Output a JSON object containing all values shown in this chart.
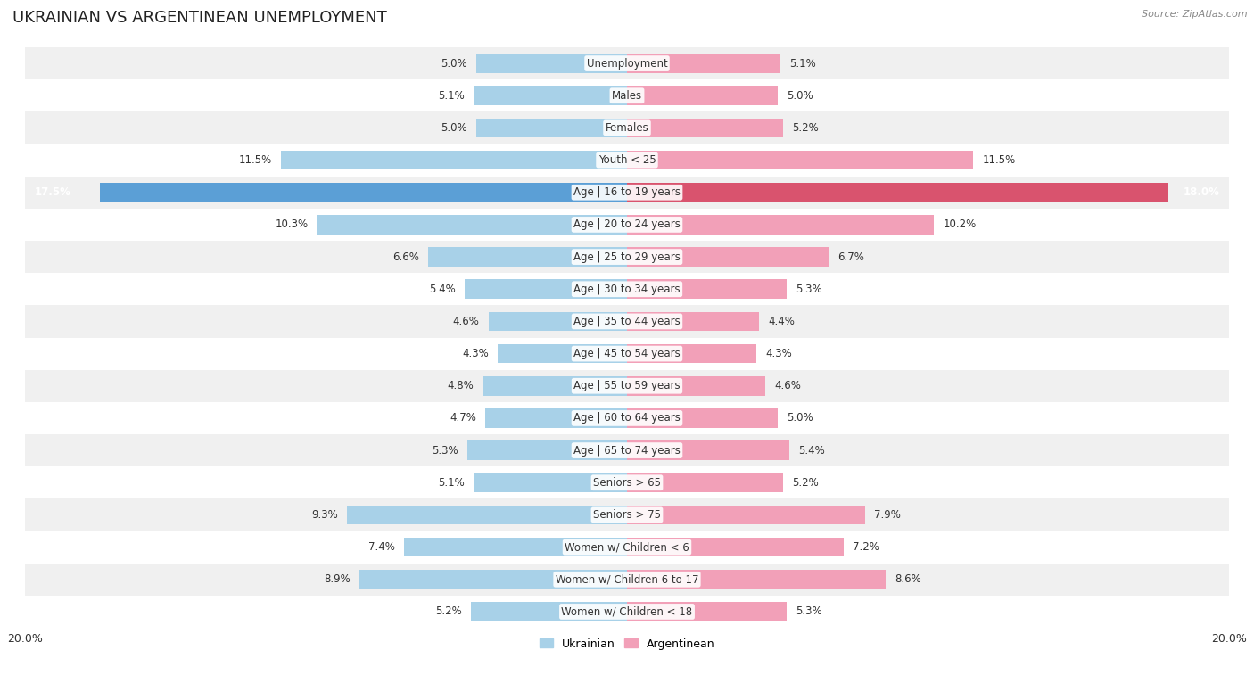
{
  "title": "UKRAINIAN VS ARGENTINEAN UNEMPLOYMENT",
  "source": "Source: ZipAtlas.com",
  "categories": [
    "Unemployment",
    "Males",
    "Females",
    "Youth < 25",
    "Age | 16 to 19 years",
    "Age | 20 to 24 years",
    "Age | 25 to 29 years",
    "Age | 30 to 34 years",
    "Age | 35 to 44 years",
    "Age | 45 to 54 years",
    "Age | 55 to 59 years",
    "Age | 60 to 64 years",
    "Age | 65 to 74 years",
    "Seniors > 65",
    "Seniors > 75",
    "Women w/ Children < 6",
    "Women w/ Children 6 to 17",
    "Women w/ Children < 18"
  ],
  "ukrainian": [
    5.0,
    5.1,
    5.0,
    11.5,
    17.5,
    10.3,
    6.6,
    5.4,
    4.6,
    4.3,
    4.8,
    4.7,
    5.3,
    5.1,
    9.3,
    7.4,
    8.9,
    5.2
  ],
  "argentinean": [
    5.1,
    5.0,
    5.2,
    11.5,
    18.0,
    10.2,
    6.7,
    5.3,
    4.4,
    4.3,
    4.6,
    5.0,
    5.4,
    5.2,
    7.9,
    7.2,
    8.6,
    5.3
  ],
  "ukrainian_color": "#a8d1e8",
  "argentinean_color": "#f2a0b8",
  "highlight_ukrainian_color": "#5b9fd6",
  "highlight_argentinean_color": "#d9536e",
  "bg_row_even": "#f0f0f0",
  "bg_row_odd": "#ffffff",
  "max_val": 20.0,
  "legend_ukrainian": "Ukrainian",
  "legend_argentinean": "Argentinean",
  "title_fontsize": 13,
  "label_fontsize": 8.5,
  "value_fontsize": 8.5,
  "highlight_index": 4
}
